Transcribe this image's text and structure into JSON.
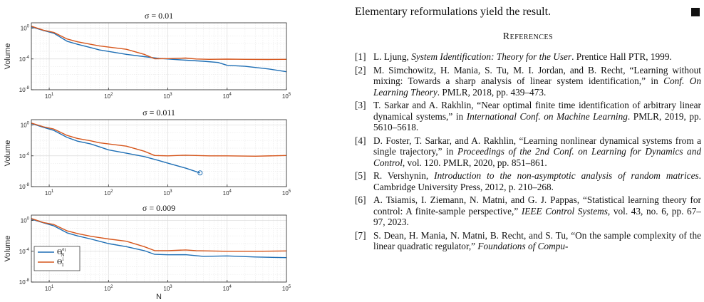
{
  "paper": {
    "conclusion_sentence": "Elementary reformulations yield the result.",
    "references_heading": "References",
    "references": [
      {
        "num": "[1]",
        "pre": "L. Ljung, ",
        "italic": "System Identification: Theory for the User",
        "post": ".   Prentice Hall PTR, 1999."
      },
      {
        "num": "[2]",
        "pre": "M. Simchowitz, H. Mania, S. Tu, M. I. Jordan, and B. Recht, “Learning without mixing: Towards a sharp analysis of linear system identification,” in ",
        "italic": "Conf. On Learning Theory",
        "post": ".   PMLR, 2018, pp. 439–473."
      },
      {
        "num": "[3]",
        "pre": "T. Sarkar and A. Rakhlin, “Near optimal finite time identification of arbitrary linear dynamical systems,” in ",
        "italic": "International Conf. on Machine Learning",
        "post": ".   PMLR, 2019, pp. 5610–5618."
      },
      {
        "num": "[4]",
        "pre": "D. Foster, T. Sarkar, and A. Rakhlin, “Learning nonlinear dynamical systems from a single trajectory,” in ",
        "italic": "Proceedings of the 2nd Conf. on Learning for Dynamics and Control",
        "post": ", vol. 120.   PMLR, 2020, pp. 851–861."
      },
      {
        "num": "[5]",
        "pre": "R. Vershynin, ",
        "italic": "Introduction to the non-asymptotic analysis of random matrices",
        "post": ".   Cambridge University Press, 2012, p. 210–268."
      },
      {
        "num": "[6]",
        "pre": "A. Tsiamis, I. Ziemann, N. Matni, and G. J. Pappas, “Statistical learning theory for control: A finite-sample perspective,” ",
        "italic": "IEEE Control Systems",
        "post": ", vol. 43, no. 6, pp. 67–97, 2023."
      },
      {
        "num": "[7]",
        "pre": "S. Dean, H. Mania, N. Matni, B. Recht, and S. Tu, “On the sample complexity of the linear quadratic regulator,” ",
        "italic": "Foundations of Compu-",
        "post": ""
      }
    ]
  },
  "chart_data": {
    "type": "line",
    "xscale": "log",
    "yscale": "log",
    "xlim": [
      5,
      100000
    ],
    "ylim": [
      1e-08,
      5
    ],
    "xticks": [
      {
        "v": 10,
        "base": "10",
        "exp": "1"
      },
      {
        "v": 100,
        "base": "10",
        "exp": "2"
      },
      {
        "v": 1000,
        "base": "10",
        "exp": "3"
      },
      {
        "v": 10000,
        "base": "10",
        "exp": "4"
      },
      {
        "v": 100000,
        "base": "10",
        "exp": "5"
      }
    ],
    "yticks": [
      {
        "v": 1,
        "base": "10",
        "exp": "0"
      },
      {
        "v": 0.0001,
        "base": "10",
        "exp": "-4"
      },
      {
        "v": 1e-08,
        "base": "10",
        "exp": "-8"
      }
    ],
    "ylabel": "Volume",
    "xlabel": "N",
    "grid": true,
    "legend": {
      "location": "bottom-left",
      "entries": [
        {
          "main": "Θ",
          "sub": "N",
          "sup": "e",
          "supsub": "i",
          "color": "#1f6fb5"
        },
        {
          "main": "Θ",
          "sub": "1",
          "sup": "i",
          "supsub": "",
          "color": "#d6561c"
        }
      ]
    },
    "panels": [
      {
        "title": "σ = 0.01",
        "series": [
          {
            "color": "#1f6fb5",
            "points": [
              [
                5,
                1.5
              ],
              [
                8,
                0.5
              ],
              [
                12,
                0.22
              ],
              [
                20,
                0.02
              ],
              [
                30,
                0.008
              ],
              [
                50,
                0.003
              ],
              [
                70,
                0.0015
              ],
              [
                100,
                0.00095
              ],
              [
                200,
                0.0004
              ],
              [
                400,
                0.0002
              ],
              [
                700,
                0.00012
              ],
              [
                1000,
                0.0001
              ],
              [
                2000,
                7e-05
              ],
              [
                4000,
                5e-05
              ],
              [
                7000,
                3.5e-05
              ],
              [
                10000,
                1.5e-05
              ],
              [
                20000,
                1.1e-05
              ],
              [
                50000,
                5e-06
              ],
              [
                100000,
                2.2e-06
              ]
            ]
          },
          {
            "color": "#d6561c",
            "points": [
              [
                5,
                1.8
              ],
              [
                8,
                0.55
              ],
              [
                12,
                0.28
              ],
              [
                20,
                0.04
              ],
              [
                30,
                0.017
              ],
              [
                50,
                0.008
              ],
              [
                70,
                0.005
              ],
              [
                100,
                0.0035
              ],
              [
                200,
                0.0018
              ],
              [
                400,
                0.0004
              ],
              [
                600,
                0.000105
              ],
              [
                1000,
                0.00011
              ],
              [
                2000,
                0.00013
              ],
              [
                3000,
                0.0001
              ],
              [
                5000,
                9e-05
              ],
              [
                10000,
                9.5e-05
              ],
              [
                20000,
                9e-05
              ],
              [
                50000,
                8.5e-05
              ],
              [
                100000,
                9e-05
              ]
            ]
          }
        ]
      },
      {
        "title": "σ = 0.011",
        "series": [
          {
            "color": "#1f6fb5",
            "points": [
              [
                5,
                1.6
              ],
              [
                8,
                0.5
              ],
              [
                12,
                0.2
              ],
              [
                20,
                0.025
              ],
              [
                30,
                0.008
              ],
              [
                50,
                0.0035
              ],
              [
                70,
                0.0015
              ],
              [
                100,
                0.0006
              ],
              [
                200,
                0.00022
              ],
              [
                400,
                8e-05
              ],
              [
                700,
                2.5e-05
              ],
              [
                1000,
                1.1e-05
              ],
              [
                2000,
                2.5e-06
              ],
              [
                3500,
                6e-07
              ]
            ],
            "end_marker": [
              3500,
              6e-07
            ]
          },
          {
            "color": "#d6561c",
            "points": [
              [
                5,
                1.8
              ],
              [
                8,
                0.6
              ],
              [
                12,
                0.3
              ],
              [
                20,
                0.045
              ],
              [
                30,
                0.018
              ],
              [
                50,
                0.009
              ],
              [
                70,
                0.005
              ],
              [
                100,
                0.0035
              ],
              [
                200,
                0.0018
              ],
              [
                400,
                0.0004
              ],
              [
                600,
                0.00011
              ],
              [
                1000,
                0.0001
              ],
              [
                2000,
                0.00012
              ],
              [
                5000,
                0.0001
              ],
              [
                10000,
                0.0001
              ],
              [
                30000,
                9e-05
              ],
              [
                100000,
                0.00011
              ]
            ]
          }
        ]
      },
      {
        "title": "σ = 0.009",
        "series": [
          {
            "color": "#1f6fb5",
            "points": [
              [
                5,
                1.5
              ],
              [
                8,
                0.5
              ],
              [
                12,
                0.2
              ],
              [
                20,
                0.025
              ],
              [
                30,
                0.01
              ],
              [
                50,
                0.004
              ],
              [
                70,
                0.002
              ],
              [
                100,
                0.001
              ],
              [
                200,
                0.0004
              ],
              [
                400,
                0.00012
              ],
              [
                600,
                4e-05
              ],
              [
                1000,
                3.5e-05
              ],
              [
                2000,
                3.6e-05
              ],
              [
                4000,
                2.2e-05
              ],
              [
                10000,
                2.5e-05
              ],
              [
                30000,
                1.8e-05
              ],
              [
                100000,
                1.5e-05
              ]
            ]
          },
          {
            "color": "#d6561c",
            "points": [
              [
                5,
                1.8
              ],
              [
                8,
                0.55
              ],
              [
                12,
                0.3
              ],
              [
                20,
                0.045
              ],
              [
                30,
                0.02
              ],
              [
                50,
                0.009
              ],
              [
                70,
                0.006
              ],
              [
                100,
                0.004
              ],
              [
                200,
                0.002
              ],
              [
                400,
                0.0004
              ],
              [
                600,
                0.00012
              ],
              [
                1000,
                0.00012
              ],
              [
                2000,
                0.00015
              ],
              [
                3000,
                0.00012
              ],
              [
                5000,
                0.00011
              ],
              [
                10000,
                0.0001
              ],
              [
                30000,
                0.0001
              ],
              [
                100000,
                0.00011
              ]
            ]
          }
        ]
      }
    ]
  }
}
